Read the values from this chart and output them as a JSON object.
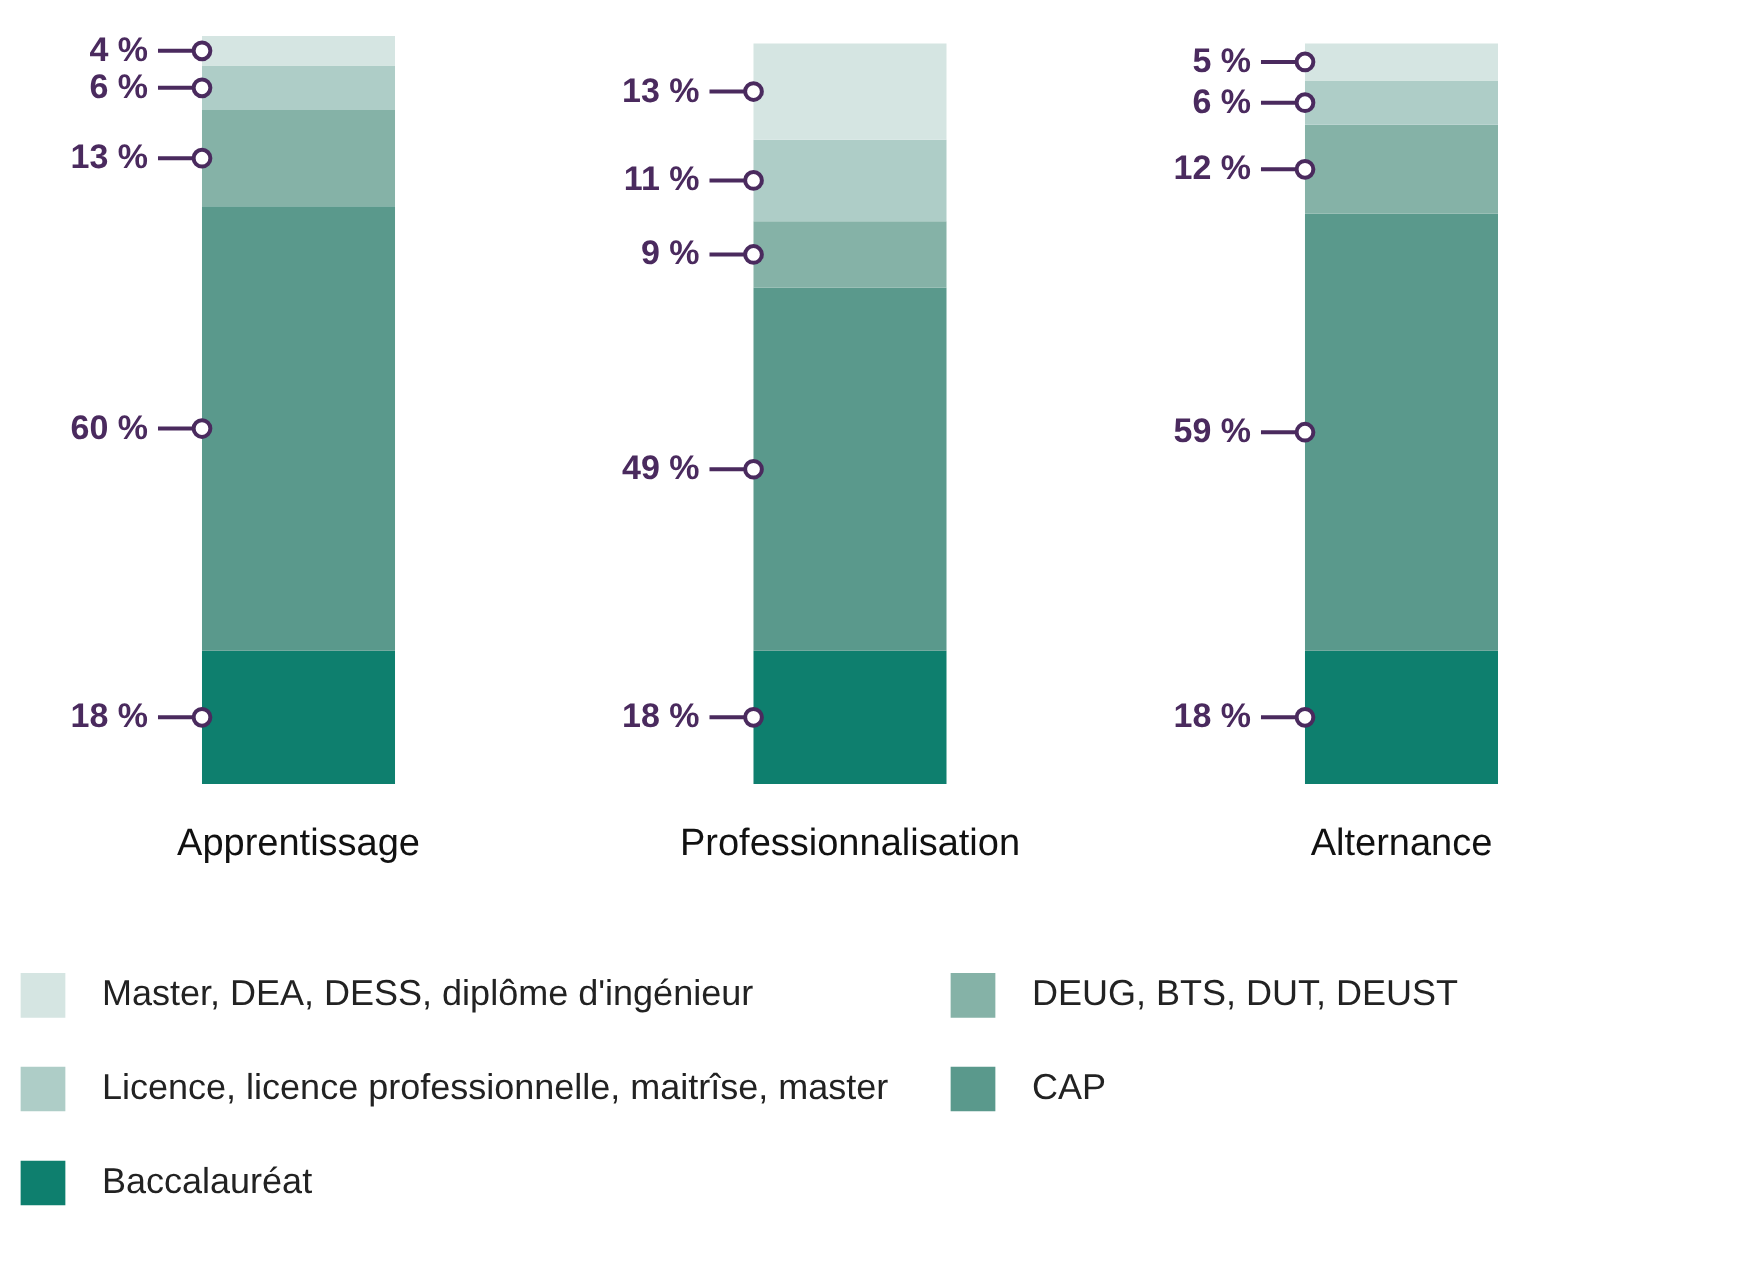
{
  "chart_data": {
    "type": "bar",
    "stacked": true,
    "categories": [
      "Apprentissage",
      "Professionnalisation",
      "Alternance"
    ],
    "series": [
      {
        "name": "Baccalauréat",
        "color": "#0e7f6e",
        "values": [
          18,
          18,
          18
        ],
        "value_labels": [
          "18 %",
          "18 %",
          "18 %"
        ]
      },
      {
        "name": "CAP",
        "color": "#5a998c",
        "values": [
          60,
          49,
          59
        ],
        "value_labels": [
          "60 %",
          "49 %",
          "59 %"
        ]
      },
      {
        "name": "DEUG, BTS, DUT, DEUST",
        "color": "#85b2a7",
        "values": [
          13,
          9,
          12
        ],
        "value_labels": [
          "13 %",
          "9 %",
          "12 %"
        ]
      },
      {
        "name": "Licence, licence professionnelle, maitrîse, master",
        "color": "#aecdc7",
        "values": [
          6,
          11,
          6
        ],
        "value_labels": [
          "6 %",
          "11 %",
          "6 %"
        ]
      },
      {
        "name": "Master, DEA, DESS, diplôme d'ingénieur",
        "color": "#d5e5e2",
        "values": [
          4,
          13,
          5
        ],
        "value_labels": [
          "4 %",
          "13 %",
          "5 %"
        ]
      }
    ],
    "legend": "bottom"
  }
}
